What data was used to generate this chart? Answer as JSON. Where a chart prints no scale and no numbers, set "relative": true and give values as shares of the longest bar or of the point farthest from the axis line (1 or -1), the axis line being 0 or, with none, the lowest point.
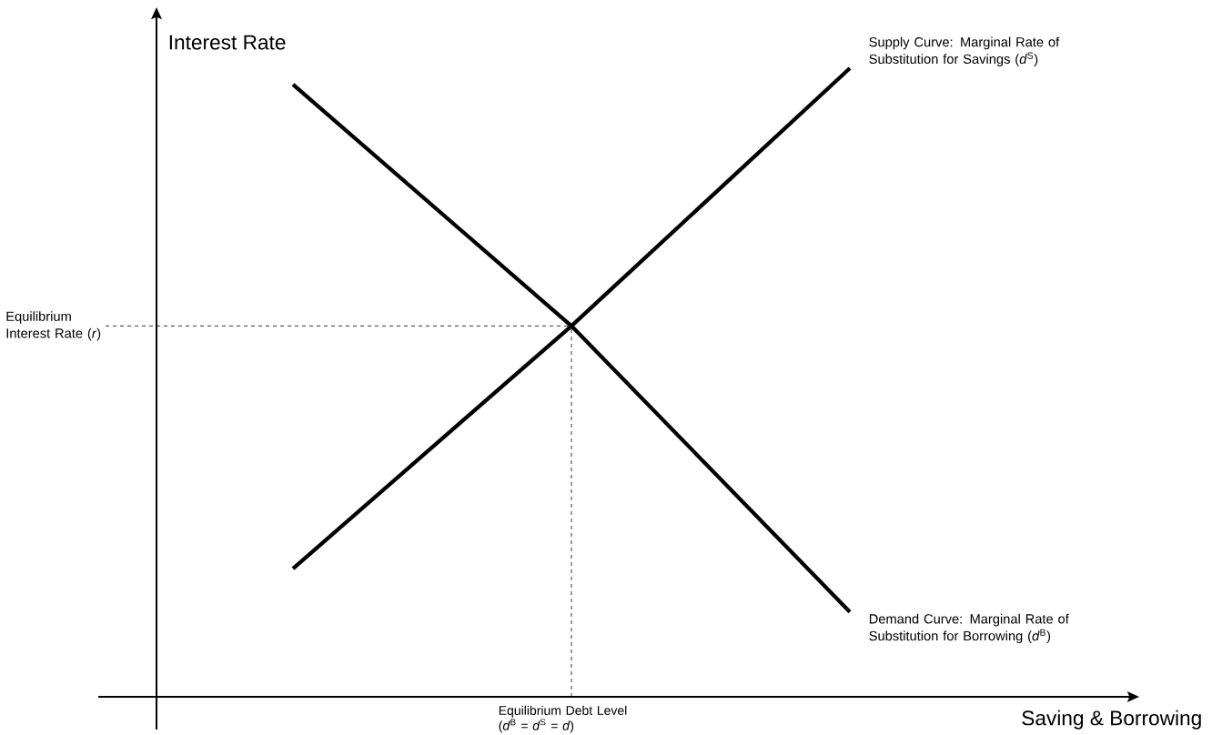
{
  "chart_data": {
    "type": "line",
    "relative": true,
    "xlabel": "Saving & Borrowing",
    "ylabel": "Interest Rate",
    "categories": [
      null,
      null,
      null
    ],
    "series": [
      {
        "name": "Supply Curve: Marginal Rate of Substitution for Savings (*d*$^{S}$)",
        "color": "#000000",
        "values": [
          0.204,
          0.59,
          1
        ]
      },
      {
        "name": "Demand Curve: Marginal Rate of Substitution for Borrowing (*d*$^{B}$)",
        "color": "#000000",
        "values": [
          0.974,
          0.59,
          0.135
        ]
      }
    ],
    "ref_lines": [
      {
        "axis": "y",
        "value": 0.59,
        "label": "Equilibrium Interest Rate (*r*)",
        "line_style": "dashed"
      }
    ],
    "annotations": [
      "Equilibrium Debt Level (*d*$^{B}$ = *d*$^{S}$ = *d*)"
    ]
  }
}
